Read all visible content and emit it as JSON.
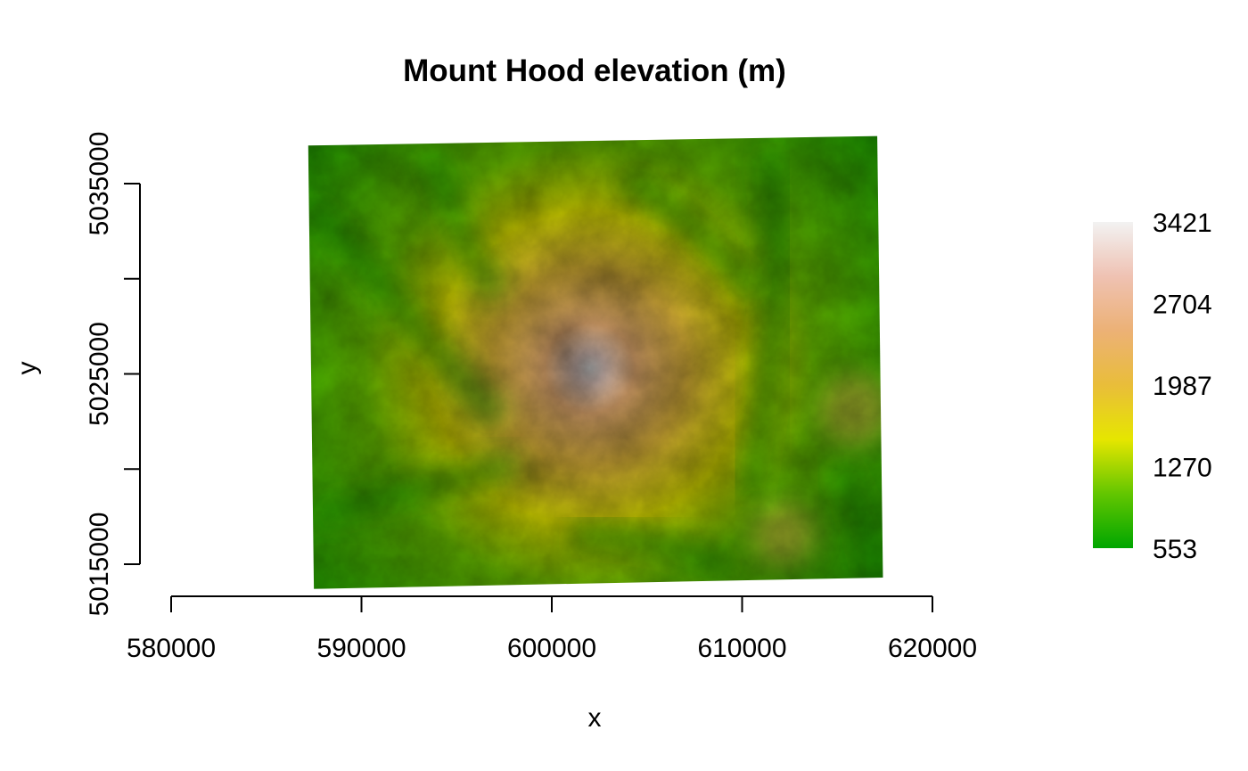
{
  "chart_data": {
    "type": "heatmap",
    "title": "Mount Hood elevation (m)",
    "xlabel": "x",
    "ylabel": "y",
    "xlim": [
      580000,
      620000
    ],
    "ylim": [
      5015000,
      5035000
    ],
    "x_ticks": [
      580000,
      590000,
      600000,
      610000,
      620000
    ],
    "x_tick_labels": [
      "580000",
      "590000",
      "600000",
      "610000",
      "620000"
    ],
    "y_ticks": [
      5015000,
      5020000,
      5025000,
      5030000,
      5035000
    ],
    "y_tick_labels": [
      "5015000",
      "",
      "5025000",
      "",
      "5035000"
    ],
    "raster_extent": {
      "corners": [
        [
          587200,
          5037000
        ],
        [
          617100,
          5037500
        ],
        [
          617400,
          5014300
        ],
        [
          587500,
          5013700
        ]
      ]
    },
    "peak": {
      "x": 602000,
      "y": 5025300,
      "value": 3421
    },
    "value_range": [
      553,
      3421
    ],
    "legend": {
      "position": "right",
      "tick_values": [
        553,
        1270,
        1987,
        2704,
        3421
      ],
      "tick_labels": [
        "553",
        "1270",
        "1987",
        "2704",
        "3421"
      ]
    },
    "palette": [
      "#00a600",
      "#63c600",
      "#e6e600",
      "#e9bd3a",
      "#ecb176",
      "#efc2b3",
      "#f2f2f2"
    ],
    "grid": false
  }
}
